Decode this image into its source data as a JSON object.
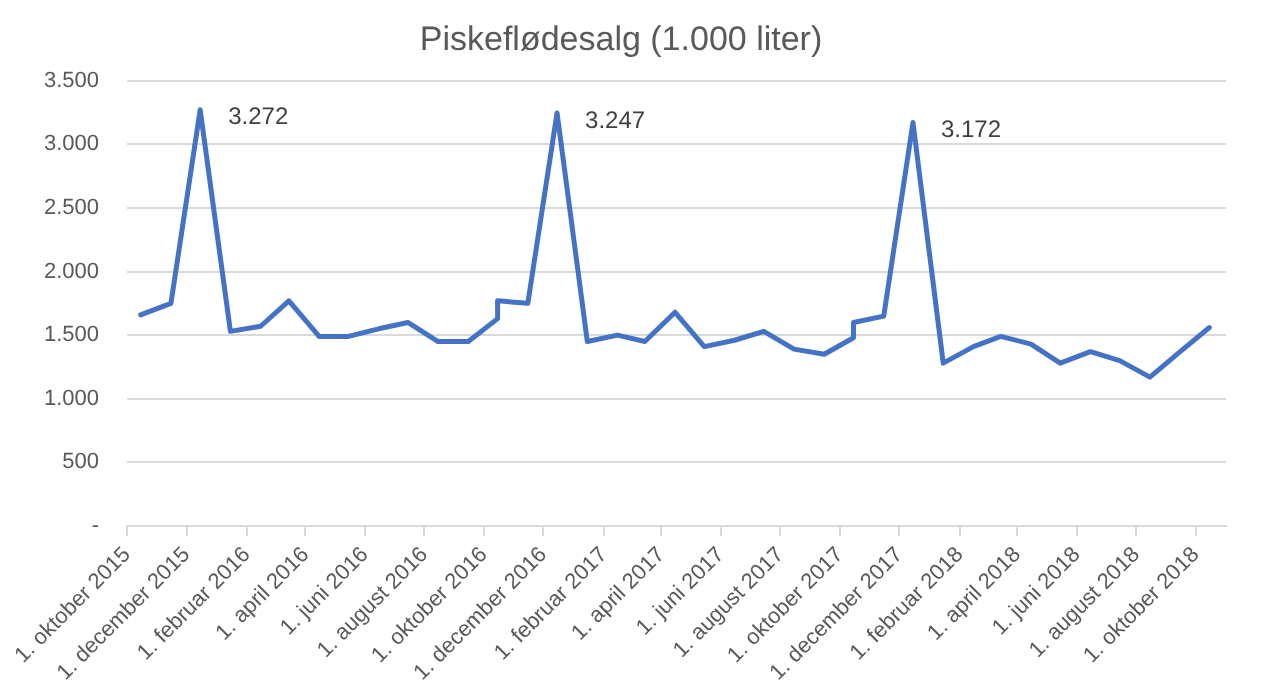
{
  "chart_data": {
    "type": "line",
    "title": "Piskeflødesalg (1.000 liter)",
    "x": [
      "2015-10-15",
      "2015-11-15",
      "2015-12-15",
      "2016-01-15",
      "2016-02-15",
      "2016-03-15",
      "2016-04-15",
      "2016-05-15",
      "2016-06-15",
      "2016-07-15",
      "2016-08-15",
      "2016-09-15",
      "2016-10-15",
      "2016-10-15",
      "2016-11-15",
      "2016-12-15",
      "2017-01-15",
      "2017-02-15",
      "2017-03-15",
      "2017-04-15",
      "2017-05-15",
      "2017-06-15",
      "2017-07-15",
      "2017-08-15",
      "2017-09-15",
      "2017-10-15",
      "2017-10-15",
      "2017-11-15",
      "2017-12-15",
      "2018-01-15",
      "2018-02-15",
      "2018-03-15",
      "2018-04-15",
      "2018-05-15",
      "2018-06-15",
      "2018-07-15",
      "2018-08-15",
      "2018-09-15",
      "2018-10-15"
    ],
    "series": [
      {
        "color": "#4472c4",
        "values": [
          1660,
          1750,
          3272,
          1530,
          1570,
          1770,
          1490,
          1490,
          1550,
          1600,
          1450,
          1450,
          1630,
          1770,
          1750,
          3247,
          1450,
          1500,
          1450,
          1680,
          1410,
          1460,
          1530,
          1390,
          1350,
          1480,
          1600,
          1650,
          3172,
          1280,
          1410,
          1490,
          1430,
          1280,
          1370,
          1300,
          1170,
          1370,
          1560
        ],
        "value_labels": [
          null,
          null,
          "3.272",
          null,
          null,
          null,
          null,
          null,
          null,
          null,
          null,
          null,
          null,
          null,
          null,
          "3.247",
          null,
          null,
          null,
          null,
          null,
          null,
          null,
          null,
          null,
          null,
          null,
          null,
          "3.172",
          null,
          null,
          null,
          null,
          null,
          null,
          null,
          null,
          null,
          null
        ]
      }
    ],
    "xlim": [
      "2015-10-01",
      "2018-11-01"
    ],
    "xticks": [
      {
        "value": "2015-10-01",
        "label": "1. oktober 2015"
      },
      {
        "value": "2015-12-01",
        "label": "1. december 2015"
      },
      {
        "value": "2016-02-01",
        "label": "1. februar 2016"
      },
      {
        "value": "2016-04-01",
        "label": "1. april 2016"
      },
      {
        "value": "2016-06-01",
        "label": "1. juni 2016"
      },
      {
        "value": "2016-08-01",
        "label": "1. august 2016"
      },
      {
        "value": "2016-10-01",
        "label": "1. oktober 2016"
      },
      {
        "value": "2016-12-01",
        "label": "1. december 2016"
      },
      {
        "value": "2017-02-01",
        "label": "1. februar 2017"
      },
      {
        "value": "2017-04-01",
        "label": "1. april 2017"
      },
      {
        "value": "2017-06-01",
        "label": "1. juni 2017"
      },
      {
        "value": "2017-08-01",
        "label": "1. august 2017"
      },
      {
        "value": "2017-10-01",
        "label": "1. oktober 2017"
      },
      {
        "value": "2017-12-01",
        "label": "1. december 2017"
      },
      {
        "value": "2018-02-01",
        "label": "1. februar 2018"
      },
      {
        "value": "2018-04-01",
        "label": "1. april 2018"
      },
      {
        "value": "2018-06-01",
        "label": "1. juni 2018"
      },
      {
        "value": "2018-08-01",
        "label": "1. august 2018"
      },
      {
        "value": "2018-10-01",
        "label": "1. oktober 2018"
      }
    ],
    "ylim": [
      0,
      3500
    ],
    "yticks": [
      {
        "value": 0,
        "label": "-"
      },
      {
        "value": 500,
        "label": "500"
      },
      {
        "value": 1000,
        "label": "1.000"
      },
      {
        "value": 1500,
        "label": "1.500"
      },
      {
        "value": 2000,
        "label": "2.000"
      },
      {
        "value": 2500,
        "label": "2.500"
      },
      {
        "value": 3000,
        "label": "3.000"
      },
      {
        "value": 3500,
        "label": "3.500"
      }
    ],
    "grid": "y",
    "legend": false,
    "marker": "none",
    "line_style": "solid"
  }
}
